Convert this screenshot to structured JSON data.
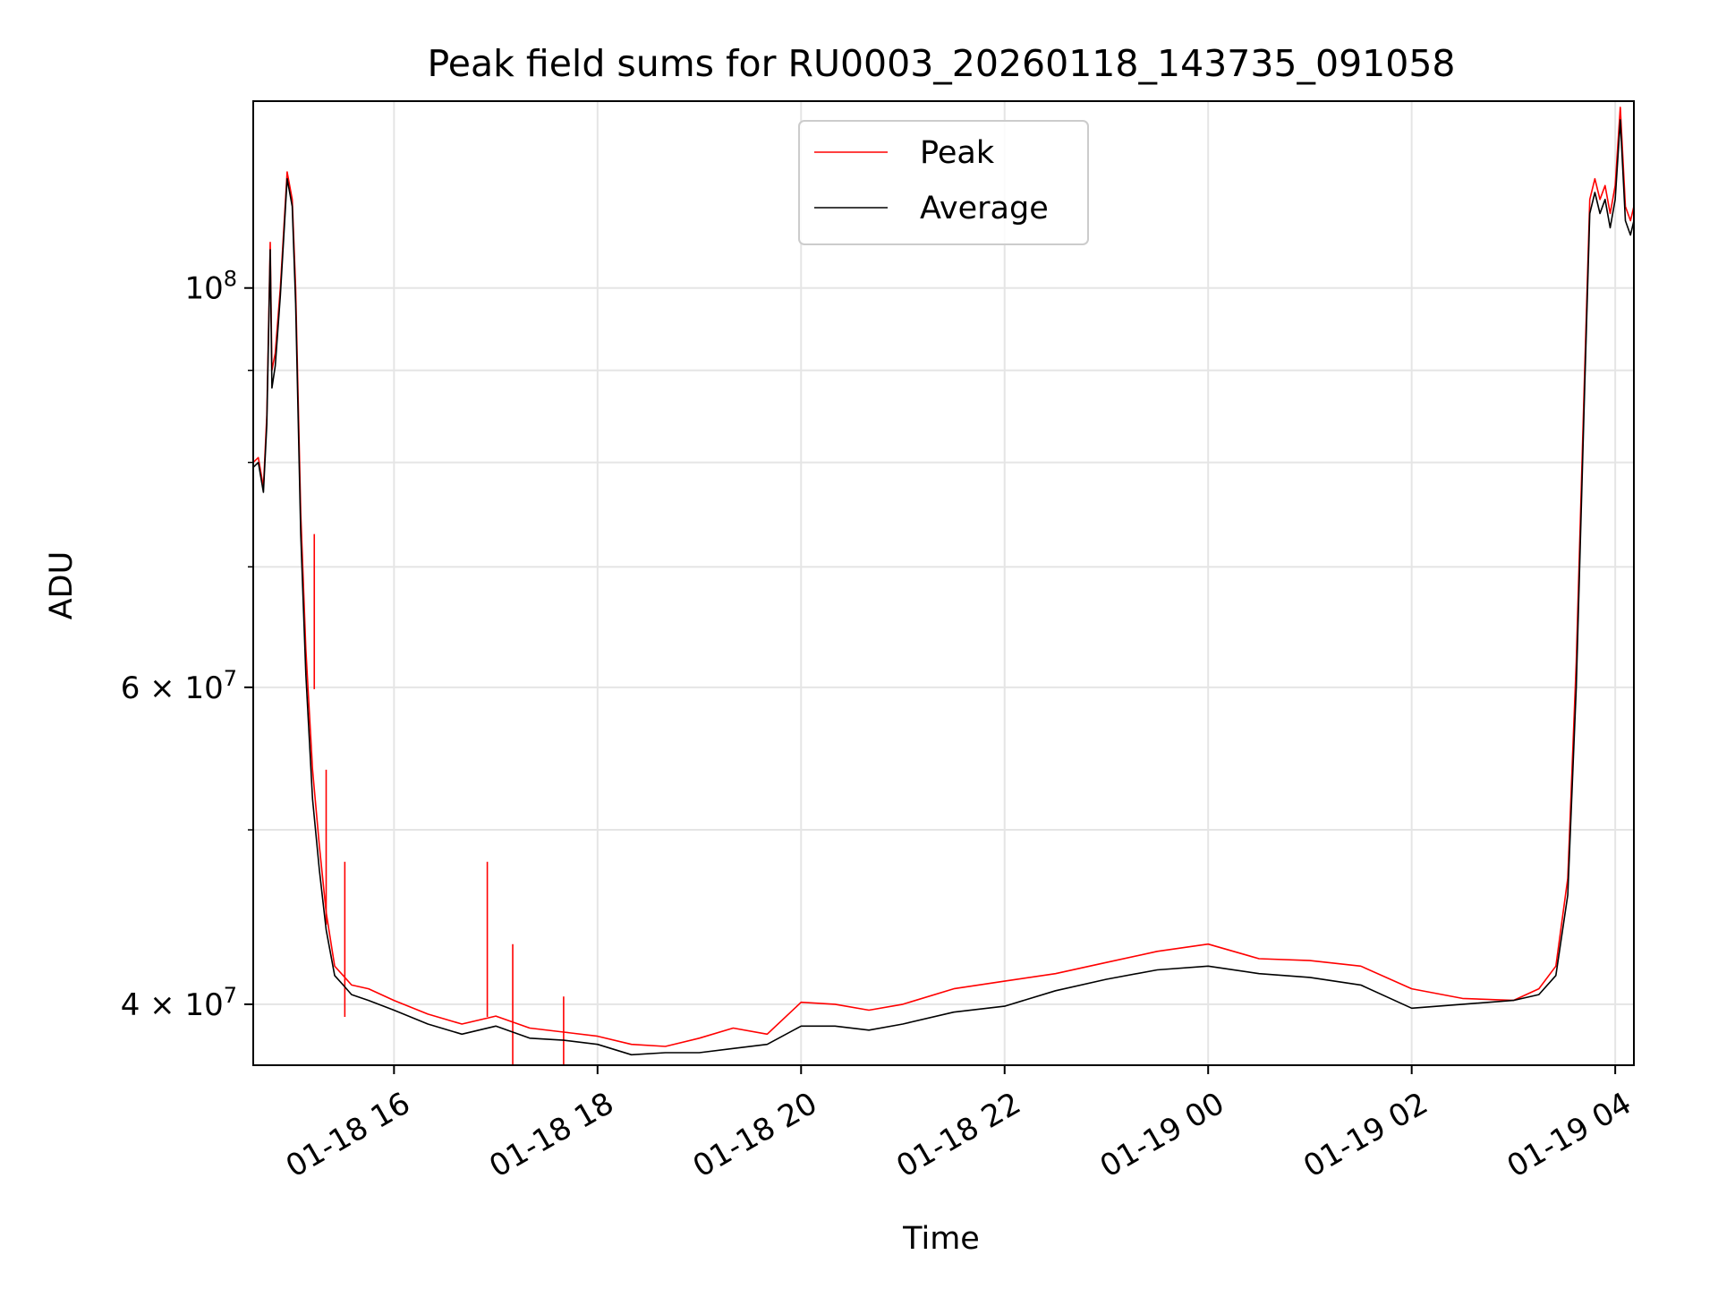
{
  "chart_data": {
    "type": "line",
    "title": "Peak field sums for RU0003_20260118_143735_091058",
    "xlabel": "Time",
    "ylabel": "ADU",
    "y_scale": "log",
    "ylim": [
      37000000,
      127000000
    ],
    "xlim": [
      "01-18 14:37",
      "01-19 04:11"
    ],
    "grid": true,
    "legend_position": "upper center",
    "x_ticks": [
      {
        "t": "01-18 16:00",
        "label": "01-18 16"
      },
      {
        "t": "01-18 18:00",
        "label": "01-18 18"
      },
      {
        "t": "01-18 20:00",
        "label": "01-18 20"
      },
      {
        "t": "01-18 22:00",
        "label": "01-18 22"
      },
      {
        "t": "01-19 00:00",
        "label": "01-19 00"
      },
      {
        "t": "01-19 02:00",
        "label": "01-19 02"
      },
      {
        "t": "01-19 04:00",
        "label": "01-19 04"
      }
    ],
    "y_ticks": [
      {
        "value": 40000000,
        "label": "4 × 10",
        "exp": "7"
      },
      {
        "value": 60000000,
        "label": "6 × 10",
        "exp": "7"
      },
      {
        "value": 100000000,
        "label": "10",
        "exp": "8"
      }
    ],
    "y_minor_ticks": [
      50000000,
      70000000,
      80000000,
      90000000
    ],
    "series": [
      {
        "name": "Peak",
        "color": "#ff0000",
        "x": [
          "01-18 14:37",
          "01-18 14:40",
          "01-18 14:43",
          "01-18 14:45",
          "01-18 14:47",
          "01-18 14:48",
          "01-18 14:50",
          "01-18 14:53",
          "01-18 14:57",
          "01-18 15:00",
          "01-18 15:02",
          "01-18 15:05",
          "01-18 15:08",
          "01-18 15:12",
          "01-18 15:16",
          "01-18 15:20",
          "01-18 15:25",
          "01-18 15:30",
          "01-18 15:35",
          "01-18 15:45",
          "01-18 16:00",
          "01-18 16:20",
          "01-18 16:40",
          "01-18 17:00",
          "01-18 17:20",
          "01-18 17:40",
          "01-18 18:00",
          "01-18 18:20",
          "01-18 18:40",
          "01-18 19:00",
          "01-18 19:20",
          "01-18 19:40",
          "01-18 20:00",
          "01-18 20:20",
          "01-18 20:40",
          "01-18 21:00",
          "01-18 21:30",
          "01-18 22:00",
          "01-18 22:30",
          "01-18 23:00",
          "01-18 23:30",
          "01-19 00:00",
          "01-19 00:30",
          "01-19 01:00",
          "01-19 01:30",
          "01-19 02:00",
          "01-19 02:30",
          "01-19 03:00",
          "01-19 03:15",
          "01-19 03:25",
          "01-19 03:32",
          "01-19 03:37",
          "01-19 03:42",
          "01-19 03:45",
          "01-19 03:48",
          "01-19 03:51",
          "01-19 03:54",
          "01-19 03:57",
          "01-19 04:00",
          "01-19 04:03",
          "01-19 04:06",
          "01-19 04:09",
          "01-19 04:11"
        ],
        "values": [
          80000000,
          80500000,
          77500000,
          85000000,
          106000000,
          90000000,
          92000000,
          100000000,
          116000000,
          112000000,
          100000000,
          75000000,
          63000000,
          54000000,
          49000000,
          45000000,
          42000000,
          41500000,
          41000000,
          40800000,
          40200000,
          39500000,
          39000000,
          39400000,
          38800000,
          38600000,
          38400000,
          38000000,
          37900000,
          38300000,
          38800000,
          38500000,
          40100000,
          40000000,
          39700000,
          40000000,
          40800000,
          41200000,
          41600000,
          42200000,
          42800000,
          43200000,
          42400000,
          42300000,
          42000000,
          40800000,
          40300000,
          40200000,
          40800000,
          42000000,
          47000000,
          62000000,
          90000000,
          112000000,
          115000000,
          112000000,
          114000000,
          110000000,
          114000000,
          126000000,
          111000000,
          109000000,
          111000000
        ],
        "spikes": [
          {
            "x": "01-18 15:13",
            "value": 73000000
          },
          {
            "x": "01-18 15:20",
            "value": 54000000
          },
          {
            "x": "01-18 15:31",
            "value": 48000000
          },
          {
            "x": "01-18 16:55",
            "value": 48000000
          },
          {
            "x": "01-18 17:10",
            "value": 43200000
          },
          {
            "x": "01-18 17:40",
            "value": 40400000
          }
        ]
      },
      {
        "name": "Average",
        "color": "#000000",
        "x": [
          "01-18 14:37",
          "01-18 14:40",
          "01-18 14:43",
          "01-18 14:45",
          "01-18 14:47",
          "01-18 14:48",
          "01-18 14:50",
          "01-18 14:53",
          "01-18 14:57",
          "01-18 15:00",
          "01-18 15:02",
          "01-18 15:05",
          "01-18 15:08",
          "01-18 15:12",
          "01-18 15:16",
          "01-18 15:20",
          "01-18 15:25",
          "01-18 15:30",
          "01-18 15:35",
          "01-18 15:45",
          "01-18 16:00",
          "01-18 16:20",
          "01-18 16:40",
          "01-18 17:00",
          "01-18 17:20",
          "01-18 17:40",
          "01-18 18:00",
          "01-18 18:20",
          "01-18 18:40",
          "01-18 19:00",
          "01-18 19:20",
          "01-18 19:40",
          "01-18 20:00",
          "01-18 20:20",
          "01-18 20:40",
          "01-18 21:00",
          "01-18 21:30",
          "01-18 22:00",
          "01-18 22:30",
          "01-18 23:00",
          "01-18 23:30",
          "01-19 00:00",
          "01-19 00:30",
          "01-19 01:00",
          "01-19 01:30",
          "01-19 02:00",
          "01-19 02:30",
          "01-19 03:00",
          "01-19 03:15",
          "01-19 03:25",
          "01-19 03:32",
          "01-19 03:37",
          "01-19 03:42",
          "01-19 03:45",
          "01-19 03:48",
          "01-19 03:51",
          "01-19 03:54",
          "01-19 03:57",
          "01-19 04:00",
          "01-19 04:03",
          "01-19 04:06",
          "01-19 04:09",
          "01-19 04:11"
        ],
        "values": [
          79500000,
          80000000,
          77000000,
          84000000,
          105000000,
          88000000,
          90500000,
          99000000,
          115000000,
          111000000,
          98000000,
          73000000,
          61000000,
          52000000,
          47500000,
          44000000,
          41500000,
          41000000,
          40500000,
          40200000,
          39700000,
          39000000,
          38500000,
          38900000,
          38300000,
          38200000,
          38000000,
          37500000,
          37600000,
          37600000,
          37800000,
          38000000,
          38900000,
          38900000,
          38700000,
          39000000,
          39600000,
          39900000,
          40700000,
          41300000,
          41800000,
          42000000,
          41600000,
          41400000,
          41000000,
          39800000,
          40000000,
          40200000,
          40500000,
          41500000,
          46000000,
          60000000,
          88000000,
          110000000,
          113000000,
          110000000,
          112000000,
          108000000,
          112000000,
          124000000,
          109000000,
          107000000,
          109000000
        ]
      }
    ]
  }
}
